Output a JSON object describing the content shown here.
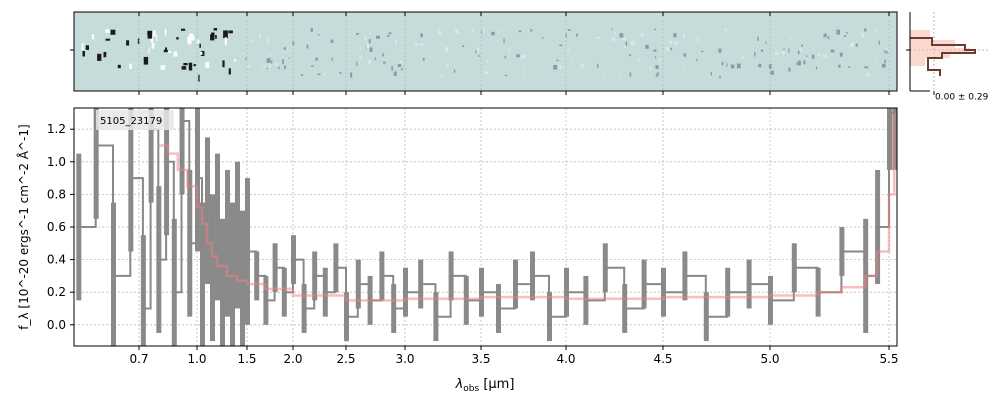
{
  "chart_data": {
    "type": "line",
    "title": "",
    "annotation": "5105_23179",
    "xlabel_main": "λ",
    "xlabel_sub": "obs",
    "xlabel_unit": " [μm]",
    "ylabel": "f_λ [10^-20 ergs^-1 cm^-2 Å^-1]",
    "xlim": [
      0.55,
      5.53
    ],
    "ylim": [
      -0.13,
      1.33
    ],
    "grid": true,
    "x_ticks": [
      {
        "label": "0.7",
        "value": 0.7
      },
      {
        "label": "1.0",
        "value": 1.0
      },
      {
        "label": "1.5",
        "value": 1.5
      },
      {
        "label": "2.0",
        "value": 2.0
      },
      {
        "label": "2.5",
        "value": 2.5
      },
      {
        "label": "3.0",
        "value": 3.0
      },
      {
        "label": "3.5",
        "value": 3.5
      },
      {
        "label": "4.0",
        "value": 4.0
      },
      {
        "label": "4.5",
        "value": 4.5
      },
      {
        "label": "5.0",
        "value": 5.0
      },
      {
        "label": "5.5",
        "value": 5.5
      }
    ],
    "y_ticks": [
      {
        "label": "0.0",
        "value": 0.0
      },
      {
        "label": "0.2",
        "value": 0.2
      },
      {
        "label": "0.4",
        "value": 0.4
      },
      {
        "label": "0.6",
        "value": 0.6
      },
      {
        "label": "0.8",
        "value": 0.8
      },
      {
        "label": "1.0",
        "value": 1.0
      },
      {
        "label": "1.2",
        "value": 1.2
      }
    ],
    "series": [
      {
        "color": "#888888",
        "style": "steps-with-error-band",
        "x": [
          0.56,
          0.6,
          0.64,
          0.68,
          0.72,
          0.76,
          0.8,
          0.84,
          0.88,
          0.92,
          0.96,
          1.0,
          1.05,
          1.1,
          1.15,
          1.2,
          1.25,
          1.3,
          1.35,
          1.4,
          1.45,
          1.5,
          1.6,
          1.7,
          1.8,
          1.9,
          2.0,
          2.1,
          2.2,
          2.3,
          2.4,
          2.5,
          2.6,
          2.7,
          2.8,
          2.9,
          3.0,
          3.1,
          3.2,
          3.3,
          3.4,
          3.5,
          3.6,
          3.7,
          3.8,
          3.9,
          4.0,
          4.1,
          4.2,
          4.3,
          4.4,
          4.5,
          4.6,
          4.7,
          4.8,
          4.9,
          5.0,
          5.1,
          5.2,
          5.3,
          5.4,
          5.45,
          5.5,
          5.52
        ],
        "values": [
          0.6,
          1.1,
          0.3,
          0.9,
          0.1,
          1.2,
          0.4,
          1.0,
          0.2,
          1.25,
          0.5,
          0.9,
          0.3,
          0.7,
          0.35,
          0.6,
          0.2,
          0.5,
          0.3,
          0.55,
          0.25,
          0.45,
          0.3,
          0.15,
          0.35,
          0.2,
          0.4,
          0.1,
          0.3,
          0.2,
          0.35,
          0.05,
          0.25,
          0.15,
          0.3,
          0.1,
          0.2,
          0.25,
          0.05,
          0.3,
          0.15,
          0.2,
          0.1,
          0.25,
          0.3,
          0.05,
          0.2,
          0.15,
          0.35,
          0.1,
          0.25,
          0.2,
          0.3,
          0.05,
          0.2,
          0.25,
          0.15,
          0.35,
          0.2,
          0.45,
          0.3,
          0.6,
          1.3,
          1.3
        ]
      },
      {
        "color": "#f08080",
        "style": "model",
        "x": [
          0.8,
          0.85,
          0.9,
          0.95,
          1.0,
          1.05,
          1.1,
          1.15,
          1.2,
          1.3,
          1.4,
          1.5,
          1.7,
          2.0,
          2.5,
          3.0,
          3.5,
          4.0,
          4.5,
          5.0,
          5.2,
          5.3,
          5.4,
          5.45,
          5.5,
          5.52
        ],
        "values": [
          1.1,
          1.05,
          0.95,
          0.85,
          0.72,
          0.62,
          0.5,
          0.42,
          0.36,
          0.3,
          0.27,
          0.25,
          0.22,
          0.18,
          0.15,
          0.16,
          0.17,
          0.16,
          0.17,
          0.18,
          0.2,
          0.23,
          0.3,
          0.45,
          0.8,
          1.3
        ]
      }
    ],
    "histogram": {
      "annotation": "0.00 ± 0.29"
    },
    "spectrum2d": {
      "background": "#c5dcdb"
    }
  }
}
